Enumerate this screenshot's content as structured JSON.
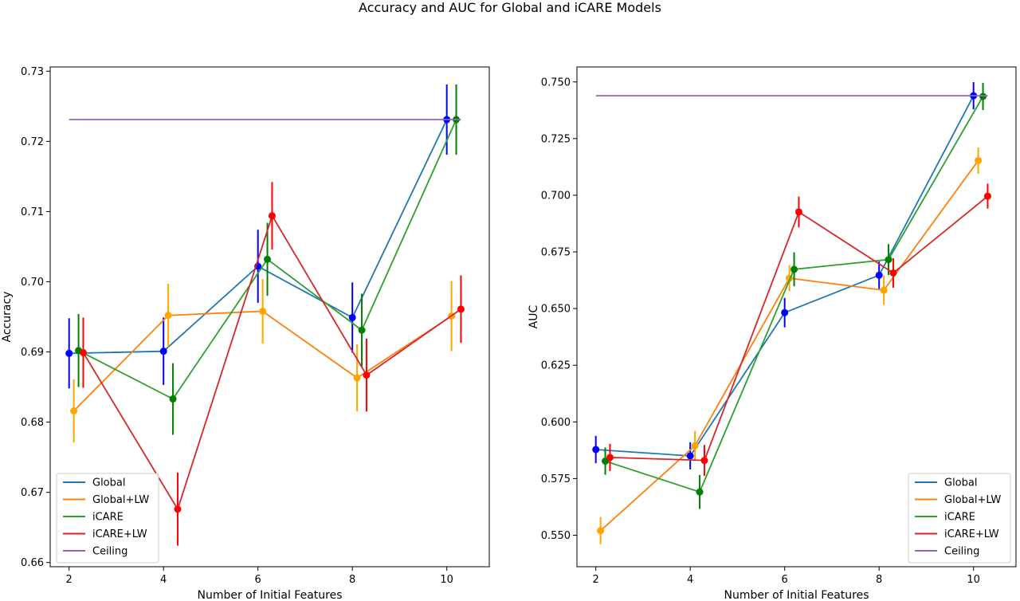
{
  "figure_title": "Accuracy and AUC for Global and iCARE Models",
  "chart_data": [
    {
      "type": "line",
      "xlabel": "Number of Initial Features",
      "ylabel": "Accuracy",
      "xlim": [
        1.6,
        10.9
      ],
      "ylim": [
        0.6594,
        0.7306
      ],
      "x_ticks": [
        2,
        4,
        6,
        8,
        10
      ],
      "y_ticks": [
        0.66,
        0.67,
        0.68,
        0.69,
        0.7,
        0.71,
        0.72,
        0.73
      ],
      "y_tick_labels": [
        "0.66",
        "0.67",
        "0.68",
        "0.69",
        "0.70",
        "0.71",
        "0.72",
        "0.73"
      ],
      "grid": false,
      "legend_position": "lower-left",
      "series": [
        {
          "name": "Global",
          "color": "#1f77b4",
          "marker_color": "#0000ff",
          "x": [
            2.0,
            4.0,
            6.0,
            8.0,
            10.0
          ],
          "y": [
            0.6898,
            0.6901,
            0.7022,
            0.6949,
            0.7231
          ],
          "err": [
            0.005,
            0.0048,
            0.0052,
            0.005,
            0.005
          ]
        },
        {
          "name": "Global+LW",
          "color": "#ff7f0e",
          "marker_color": "#ffa500",
          "x": [
            2.1,
            4.1,
            6.1,
            8.1,
            10.1
          ],
          "y": [
            0.6816,
            0.6952,
            0.6958,
            0.6863,
            0.6951
          ],
          "err": [
            0.0045,
            0.0045,
            0.0046,
            0.0048,
            0.005
          ]
        },
        {
          "name": "iCARE",
          "color": "#2ca02c",
          "marker_color": "#008000",
          "x": [
            2.2,
            4.2,
            6.2,
            8.2,
            10.2
          ],
          "y": [
            0.6902,
            0.6833,
            0.7032,
            0.6931,
            0.7231
          ],
          "err": [
            0.0052,
            0.0051,
            0.0052,
            0.0052,
            0.005
          ]
        },
        {
          "name": "iCARE+LW",
          "color": "#d62728",
          "marker_color": "#ff0000",
          "x": [
            2.3,
            4.3,
            6.3,
            8.3,
            10.3
          ],
          "y": [
            0.6899,
            0.6676,
            0.7094,
            0.6867,
            0.6961
          ],
          "err": [
            0.005,
            0.0052,
            0.0048,
            0.0052,
            0.0048
          ]
        },
        {
          "name": "Ceiling",
          "color": "#9467bd",
          "marker_color": null,
          "x": [
            2.0,
            10.3
          ],
          "y": [
            0.7231,
            0.7231
          ],
          "err": null
        }
      ]
    },
    {
      "type": "line",
      "xlabel": "Number of Initial Features",
      "ylabel": "AUC",
      "xlim": [
        1.6,
        10.9
      ],
      "ylim": [
        0.5361,
        0.7566
      ],
      "x_ticks": [
        2,
        4,
        6,
        8,
        10
      ],
      "y_ticks": [
        0.55,
        0.575,
        0.6,
        0.625,
        0.65,
        0.675,
        0.7,
        0.725,
        0.75
      ],
      "y_tick_labels": [
        "0.550",
        "0.575",
        "0.600",
        "0.625",
        "0.650",
        "0.675",
        "0.700",
        "0.725",
        "0.750"
      ],
      "grid": false,
      "legend_position": "lower-right",
      "series": [
        {
          "name": "Global",
          "color": "#1f77b4",
          "marker_color": "#0000ff",
          "x": [
            2.0,
            4.0,
            6.0,
            8.0,
            10.0
          ],
          "y": [
            0.5878,
            0.585,
            0.6482,
            0.6647,
            0.7439
          ],
          "err": [
            0.006,
            0.006,
            0.0065,
            0.006,
            0.006
          ]
        },
        {
          "name": "Global+LW",
          "color": "#ff7f0e",
          "marker_color": "#ffa500",
          "x": [
            2.1,
            4.1,
            6.1,
            8.1,
            10.1
          ],
          "y": [
            0.552,
            0.5895,
            0.6634,
            0.6581,
            0.7153
          ],
          "err": [
            0.006,
            0.0065,
            0.0058,
            0.0065,
            0.0058
          ]
        },
        {
          "name": "iCARE",
          "color": "#2ca02c",
          "marker_color": "#008000",
          "x": [
            2.2,
            4.2,
            6.2,
            8.2,
            10.2
          ],
          "y": [
            0.5827,
            0.5691,
            0.6673,
            0.6716,
            0.7436
          ],
          "err": [
            0.006,
            0.0075,
            0.0075,
            0.0068,
            0.006
          ]
        },
        {
          "name": "iCARE+LW",
          "color": "#d62728",
          "marker_color": "#ff0000",
          "x": [
            2.3,
            4.3,
            6.3,
            8.3,
            10.3
          ],
          "y": [
            0.5843,
            0.583,
            0.6926,
            0.6657,
            0.6996
          ],
          "err": [
            0.006,
            0.0068,
            0.0068,
            0.0065,
            0.0055
          ]
        },
        {
          "name": "Ceiling",
          "color": "#9467bd",
          "marker_color": null,
          "x": [
            2.0,
            10.3
          ],
          "y": [
            0.7439,
            0.7439
          ],
          "err": null
        }
      ]
    }
  ]
}
